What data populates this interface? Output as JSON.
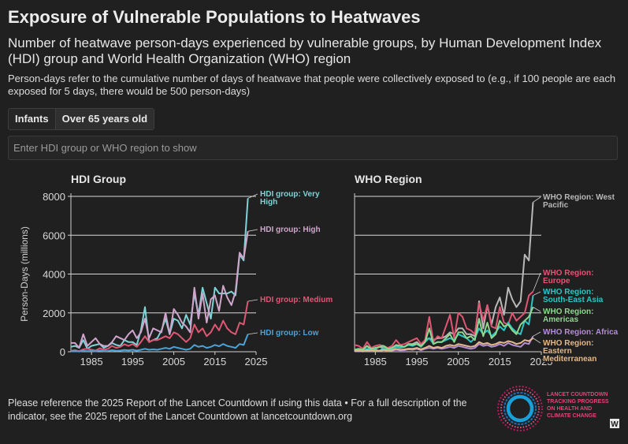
{
  "header": {
    "title": "Exposure of Vulnerable Populations to Heatwaves",
    "subtitle": "Number of heatwave person-days experienced by vulnerable groups, by Human Development Index (HDI) group and World Health Organization (WHO) region",
    "note": "Person-days refer to the cumulative number of days of heatwave that people were collectively exposed to (e.g., if 100 people are each exposed for 5 days, there would be 500 person-days)"
  },
  "tabs": {
    "infants": "Infants",
    "over65": "Over 65 years old",
    "active": "over65"
  },
  "search": {
    "placeholder": "Enter HDI group or WHO region to show"
  },
  "footer": {
    "text": "Please reference the 2025 Report of the Lancet Countdown if using this data • For a full description of the indicator, see the 2025 report of the Lancet Countdown at lancetcountdown.org",
    "logo_lines": [
      "LANCET COUNTDOWN",
      "TRACKING PROGRESS",
      "ON HEALTH AND",
      "CLIMATE CHANGE"
    ],
    "logo_badge": "W"
  },
  "chart_data": [
    {
      "type": "line",
      "title": "HDI Group",
      "xlabel": "",
      "ylabel": "Person-Days (millions)",
      "xlim": [
        1980,
        2025
      ],
      "ylim": [
        0,
        8000
      ],
      "xticks": [
        1985,
        1995,
        2005,
        2015,
        2025
      ],
      "yticks": [
        0,
        2000,
        4000,
        6000,
        8000
      ],
      "ytick_labels": [
        "0",
        "2000",
        "4000",
        "6000",
        "8000"
      ],
      "x_start": 1980,
      "series": [
        {
          "name": "HDI group: Very High",
          "label_lines": [
            "HDI group: Very",
            "High"
          ],
          "color": "#7fd3d6",
          "values": [
            250,
            300,
            200,
            600,
            150,
            300,
            350,
            400,
            200,
            300,
            450,
            350,
            300,
            600,
            500,
            500,
            350,
            1100,
            2300,
            500,
            600,
            700,
            1100,
            1700,
            900,
            1700,
            1600,
            1200,
            1900,
            1400,
            3000,
            1900,
            3300,
            2500,
            1700,
            3300,
            3000,
            3000,
            3000,
            3100,
            2900,
            5000,
            4700,
            7900
          ]
        },
        {
          "name": "HDI group: High",
          "label_lines": [
            "HDI group: High"
          ],
          "color": "#cfa5cc",
          "values": [
            450,
            450,
            200,
            900,
            300,
            500,
            700,
            400,
            300,
            300,
            500,
            800,
            700,
            600,
            900,
            1100,
            700,
            1000,
            1700,
            700,
            1200,
            1100,
            1000,
            2000,
            900,
            2200,
            1900,
            1500,
            1300,
            1000,
            3300,
            1700,
            3000,
            1500,
            2700,
            2900,
            2100,
            3400,
            2800,
            2400,
            3100,
            5100,
            4800,
            6200
          ]
        },
        {
          "name": "HDI group: Medium",
          "label_lines": [
            "HDI group: Medium"
          ],
          "color": "#e05673",
          "values": [
            50,
            80,
            30,
            120,
            150,
            100,
            60,
            180,
            100,
            150,
            300,
            200,
            250,
            380,
            300,
            400,
            250,
            500,
            800,
            500,
            600,
            600,
            700,
            800,
            700,
            1000,
            900,
            700,
            500,
            700,
            1400,
            1000,
            1200,
            800,
            1000,
            1400,
            1100,
            1600,
            1200,
            1000,
            900,
            1500,
            1400,
            2600
          ]
        },
        {
          "name": "HDI group: Low",
          "label_lines": [
            "HDI group: Low"
          ],
          "color": "#4aa3d8",
          "values": [
            20,
            30,
            10,
            40,
            30,
            40,
            20,
            60,
            30,
            40,
            80,
            50,
            60,
            90,
            70,
            100,
            60,
            100,
            150,
            100,
            120,
            100,
            150,
            200,
            150,
            250,
            200,
            150,
            100,
            150,
            350,
            250,
            300,
            200,
            250,
            350,
            280,
            400,
            300,
            250,
            200,
            400,
            350,
            900
          ]
        }
      ]
    },
    {
      "type": "line",
      "title": "WHO Region",
      "xlabel": "",
      "ylabel": "",
      "xlim": [
        1980,
        2025
      ],
      "ylim": [
        0,
        8000
      ],
      "xticks": [
        1985,
        1995,
        2005,
        2015,
        2025
      ],
      "x_start": 1980,
      "series": [
        {
          "name": "WHO Region: West Pacific",
          "label_lines": [
            "WHO Region: West",
            "Pacific"
          ],
          "color": "#b8b8b8",
          "values": [
            100,
            150,
            100,
            300,
            80,
            150,
            250,
            200,
            150,
            200,
            300,
            300,
            250,
            400,
            400,
            500,
            300,
            600,
            700,
            600,
            700,
            700,
            800,
            1000,
            900,
            1200,
            1200,
            900,
            900,
            800,
            2600,
            1200,
            2400,
            1400,
            2300,
            2800,
            1900,
            3300,
            2700,
            2300,
            2600,
            5000,
            4700,
            7700
          ]
        },
        {
          "name": "WHO Region: Europe",
          "label_lines": [
            "WHO Region:",
            "Europe"
          ],
          "color": "#e05673",
          "values": [
            350,
            300,
            150,
            500,
            200,
            300,
            350,
            300,
            200,
            300,
            600,
            350,
            400,
            500,
            600,
            700,
            400,
            600,
            1800,
            500,
            800,
            700,
            1300,
            1900,
            700,
            2000,
            1800,
            1200,
            1100,
            900,
            2500,
            1600,
            2400,
            1300,
            1200,
            2300,
            1500,
            1400,
            2000,
            1600,
            1800,
            2000,
            2900,
            3100
          ]
        },
        {
          "name": "WHO Region: South-East Asia",
          "label_lines": [
            "WHO Region:",
            "South-East Asia"
          ],
          "color": "#2ec4c4",
          "values": [
            50,
            80,
            40,
            150,
            100,
            100,
            50,
            200,
            100,
            150,
            250,
            200,
            250,
            350,
            300,
            400,
            250,
            500,
            700,
            400,
            500,
            500,
            600,
            700,
            600,
            900,
            800,
            700,
            500,
            700,
            1200,
            900,
            1100,
            800,
            1000,
            1300,
            1100,
            1500,
            1200,
            1000,
            900,
            1600,
            1400,
            2900
          ]
        },
        {
          "name": "WHO Region: Americas",
          "label_lines": [
            "WHO Region:",
            "Americas"
          ],
          "color": "#8ed88e",
          "values": [
            100,
            150,
            100,
            300,
            150,
            200,
            250,
            300,
            150,
            200,
            350,
            300,
            250,
            400,
            350,
            400,
            300,
            500,
            1200,
            400,
            500,
            500,
            700,
            900,
            500,
            1000,
            1000,
            700,
            800,
            600,
            1700,
            800,
            1500,
            700,
            900,
            1600,
            1300,
            1400,
            1100,
            900,
            1400,
            1600,
            1800,
            2300
          ]
        },
        {
          "name": "WHO Region: Africa",
          "label_lines": [
            "WHO Region: Africa"
          ],
          "color": "#b58cd6",
          "values": [
            20,
            40,
            10,
            60,
            40,
            50,
            30,
            80,
            40,
            60,
            100,
            70,
            80,
            120,
            100,
            150,
            80,
            150,
            200,
            150,
            200,
            150,
            200,
            250,
            200,
            300,
            250,
            200,
            150,
            200,
            400,
            300,
            350,
            250,
            300,
            400,
            300,
            450,
            350,
            300,
            250,
            450,
            400,
            800
          ]
        },
        {
          "name": "WHO Region: Eastern Mediterranean",
          "label_lines": [
            "WHO Region:",
            "Eastern",
            "Mediterranean"
          ],
          "color": "#e3b88a",
          "values": [
            30,
            50,
            20,
            80,
            60,
            70,
            40,
            100,
            60,
            80,
            150,
            100,
            120,
            160,
            150,
            200,
            120,
            200,
            300,
            200,
            250,
            200,
            300,
            350,
            300,
            400,
            350,
            300,
            250,
            300,
            500,
            400,
            450,
            350,
            400,
            500,
            450,
            550,
            500,
            400,
            450,
            600,
            550,
            700
          ]
        }
      ]
    }
  ]
}
